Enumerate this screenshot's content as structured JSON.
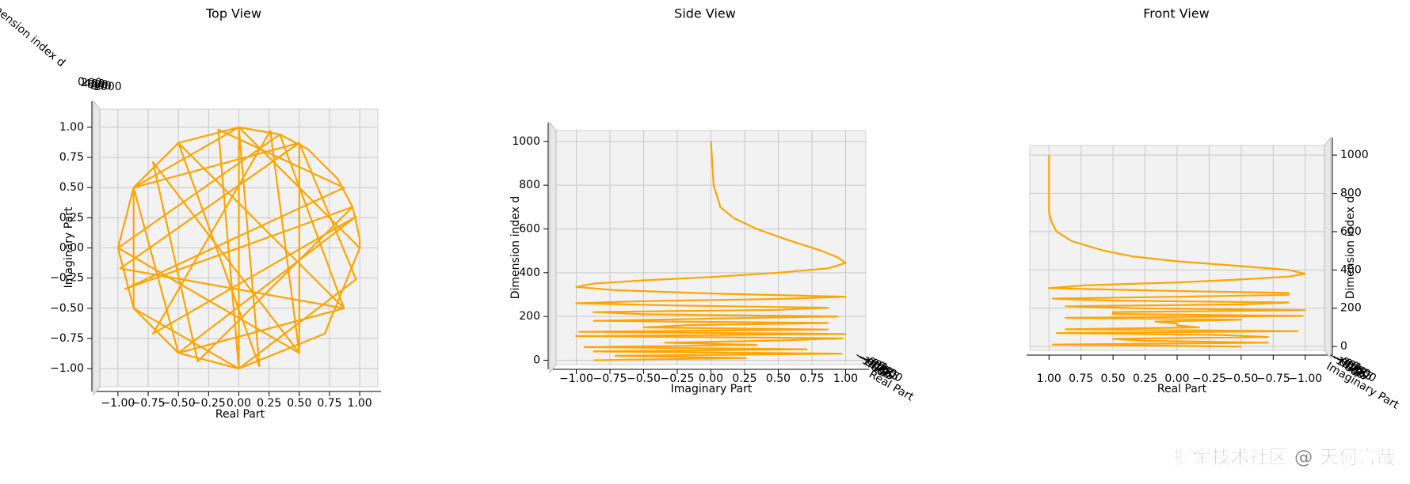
{
  "chart_data": {
    "type": "line3d",
    "color": "#ffa500",
    "xlabel": "Real Part",
    "ylabel": "Imaginary Part",
    "zlabel": "Dimension index d",
    "views": [
      {
        "title": "Top View"
      },
      {
        "title": "Side View"
      },
      {
        "title": "Front View"
      }
    ],
    "xlim": [
      -1.15,
      1.15
    ],
    "ylim": [
      -1.15,
      1.15
    ],
    "zlim": [
      -20,
      1050
    ],
    "xticks": [
      {
        "value": -1,
        "label": "−1.00"
      },
      {
        "value": -0.75,
        "label": "−0.75"
      },
      {
        "value": -0.5,
        "label": "−0.50"
      },
      {
        "value": -0.25,
        "label": "−0.25"
      },
      {
        "value": 0,
        "label": "0.00"
      },
      {
        "value": 0.25,
        "label": "0.25"
      },
      {
        "value": 0.5,
        "label": "0.50"
      },
      {
        "value": 0.75,
        "label": "0.75"
      },
      {
        "value": 1,
        "label": "1.00"
      }
    ],
    "yticks": [
      {
        "value": -1,
        "label": "−1.00"
      },
      {
        "value": -0.75,
        "label": "−0.75"
      },
      {
        "value": -0.5,
        "label": "−0.50"
      },
      {
        "value": -0.25,
        "label": "−0.25"
      },
      {
        "value": 0,
        "label": "0.00"
      },
      {
        "value": 0.25,
        "label": "0.25"
      },
      {
        "value": 0.5,
        "label": "0.50"
      },
      {
        "value": 0.75,
        "label": "0.75"
      },
      {
        "value": 1,
        "label": "1.00"
      }
    ],
    "zticks": [
      0,
      200,
      400,
      600,
      800,
      1000
    ],
    "z": [
      0,
      10,
      20,
      30,
      40,
      50,
      60,
      70,
      80,
      90,
      100,
      110,
      120,
      130,
      140,
      150,
      160,
      170,
      180,
      190,
      200,
      210,
      220,
      230,
      240,
      250,
      260,
      270,
      280,
      290,
      305,
      320,
      335,
      350,
      365,
      380,
      400,
      420,
      445,
      470,
      500,
      550,
      600,
      650,
      700,
      800,
      1000
    ],
    "x": [
      -0.5,
      0.97,
      -0.71,
      0.26,
      0.5,
      -0.71,
      -0.34,
      0.94,
      -0.94,
      0.87,
      -0.17,
      0,
      0,
      0.17,
      -0.5,
      0.87,
      -0.98,
      0.5,
      0.5,
      -1,
      0.34,
      0.87,
      -0.5,
      -0.87,
      0.5,
      0.97,
      0,
      -0.87,
      -0.87,
      0,
      1,
      0.71,
      0,
      -0.5,
      -0.87,
      -1,
      -0.87,
      -0.5,
      0,
      0.34,
      0.57,
      0.82,
      0.94,
      0.98,
      1,
      1,
      1
    ],
    "y": [
      -0.87,
      0.26,
      -0.71,
      0.97,
      -0.87,
      0.71,
      -0.94,
      0.34,
      -0.34,
      0.5,
      0.98,
      -1,
      1,
      -0.98,
      0.87,
      -0.5,
      -0.17,
      0.87,
      -0.87,
      0,
      0.94,
      -0.5,
      -0.87,
      0.5,
      0.87,
      -0.26,
      -1,
      -0.5,
      0.5,
      1,
      0,
      -0.71,
      -1,
      -0.87,
      -0.5,
      0,
      0.5,
      0.87,
      1,
      0.94,
      0.82,
      0.57,
      0.34,
      0.17,
      0.07,
      0.02,
      0
    ],
    "watermark": "掘金技术社区 @ 天何言哉"
  }
}
